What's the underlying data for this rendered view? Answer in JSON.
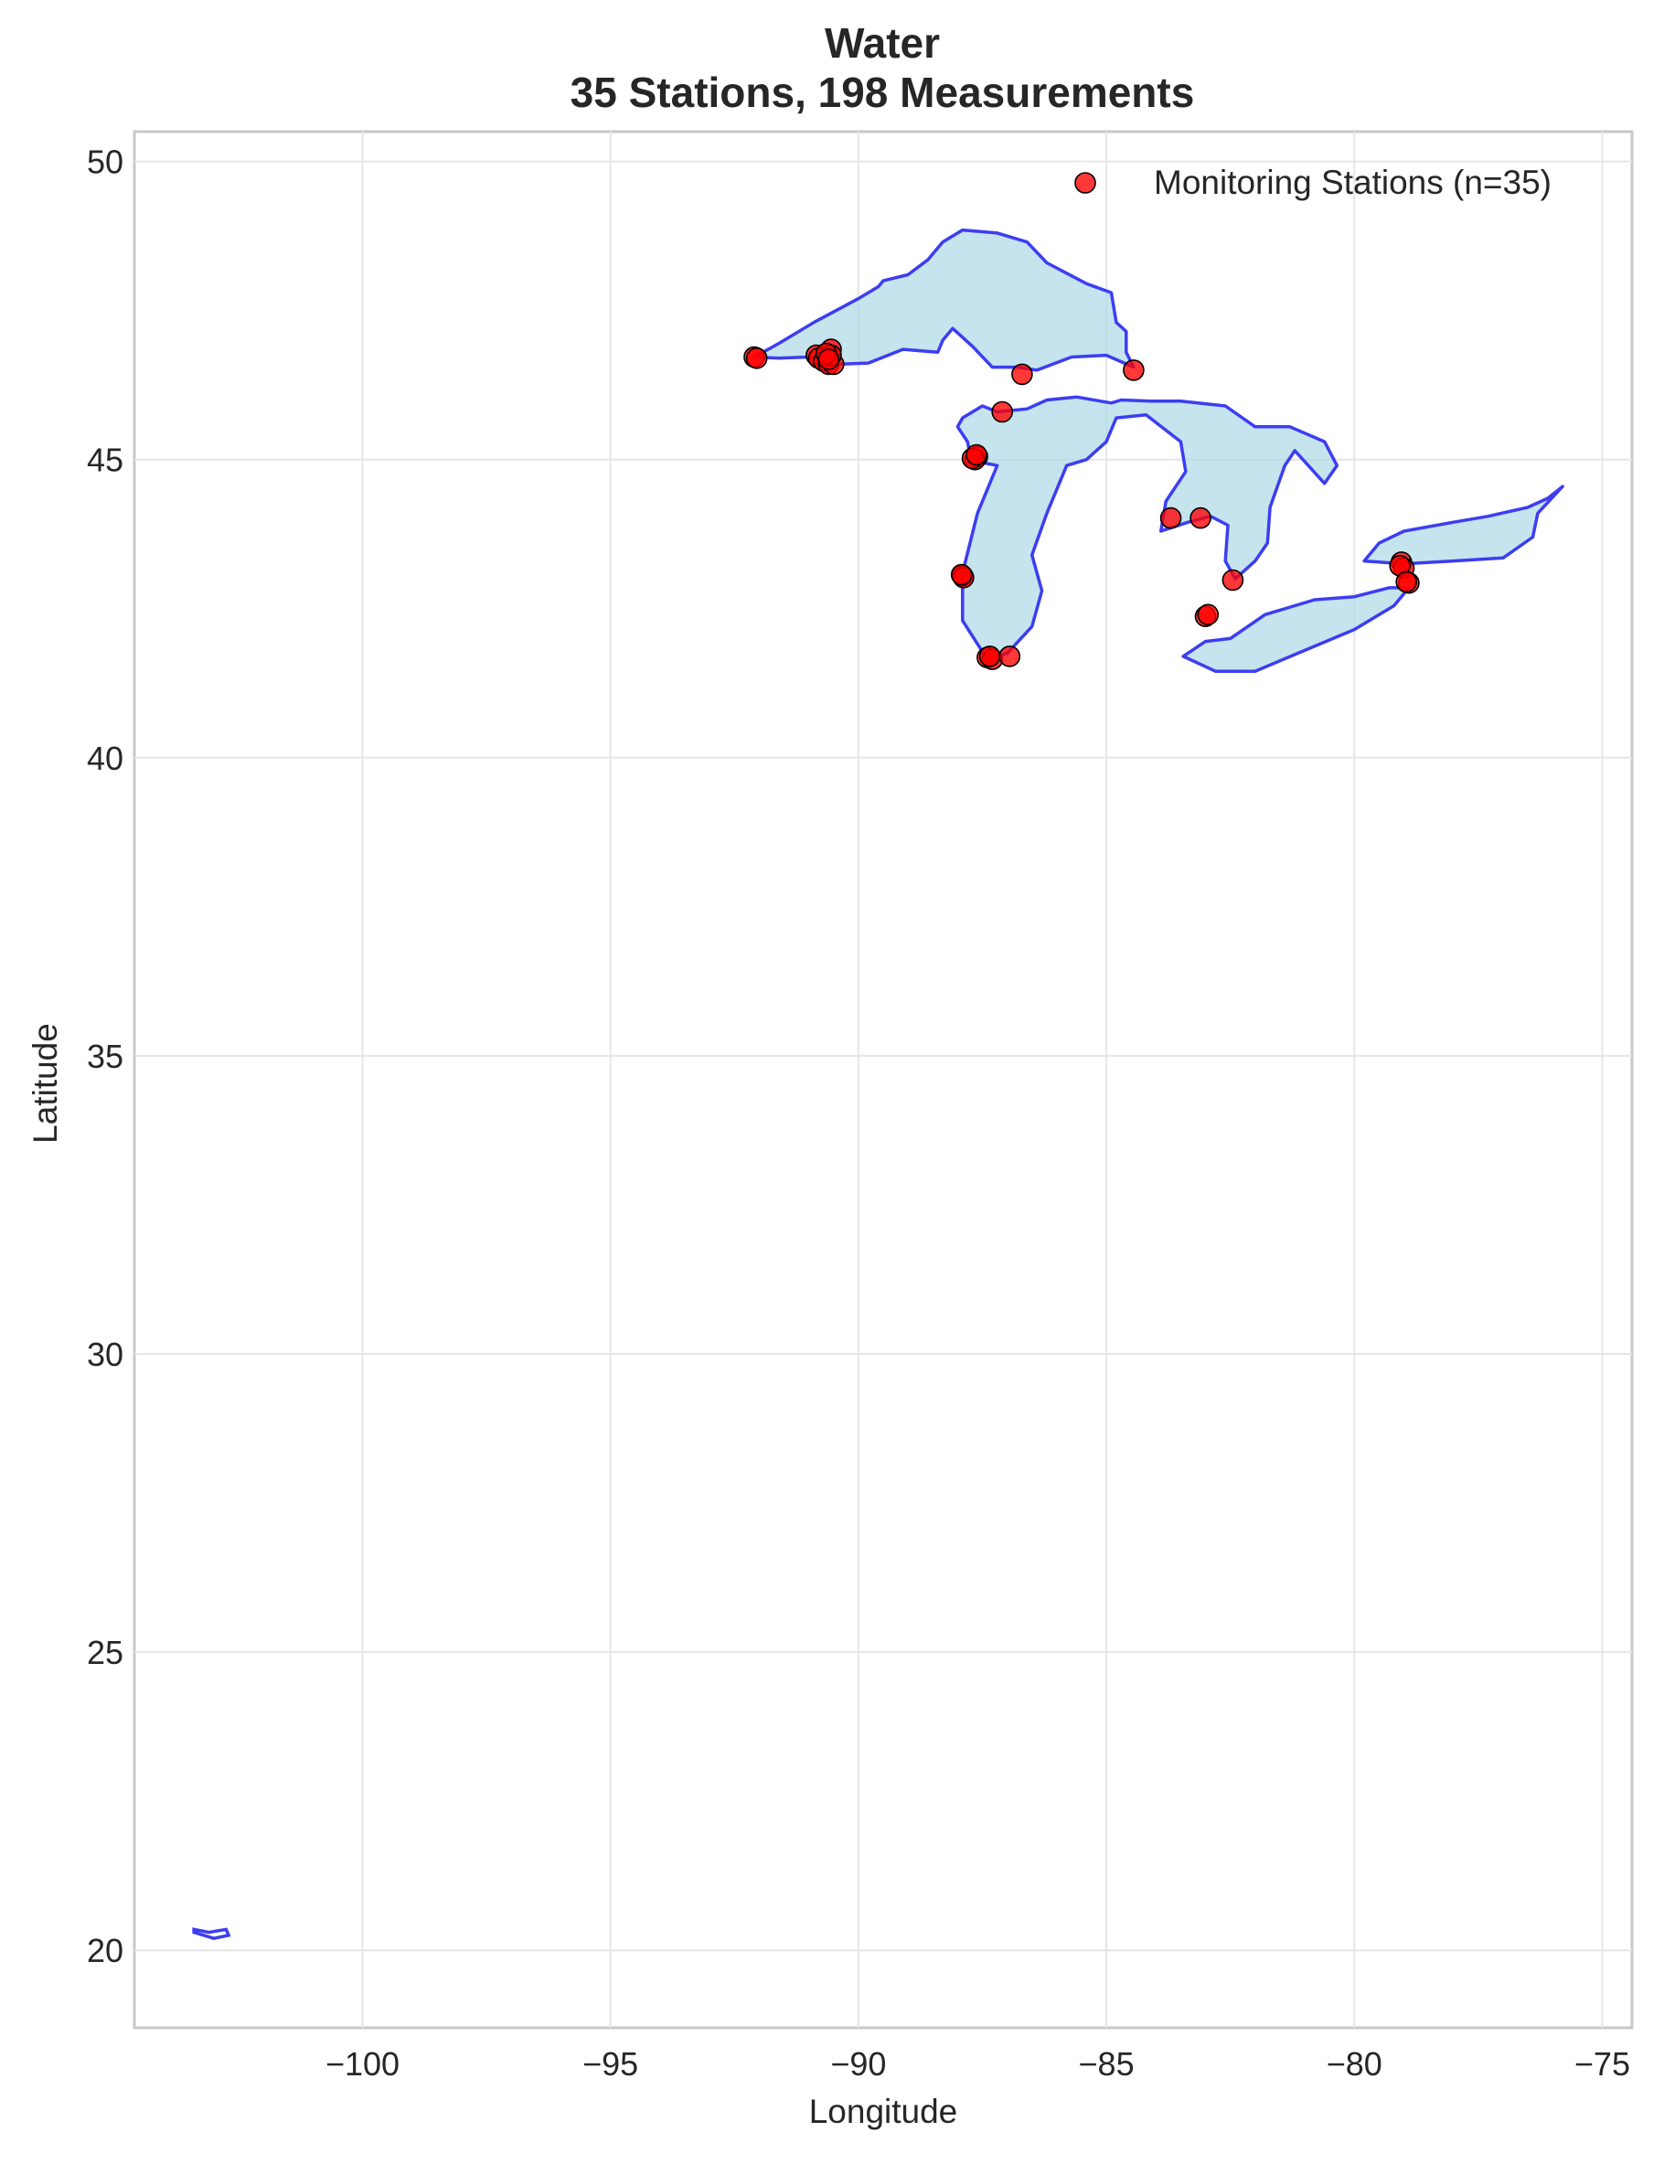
{
  "chart_data": {
    "type": "scatter",
    "title": "Water",
    "subtitle": "35 Stations, 198 Measurements",
    "xlabel": "Longitude",
    "ylabel": "Latitude",
    "xlim": [
      -104.6,
      -74.4
    ],
    "ylim": [
      18.7,
      50.5
    ],
    "xticks": [
      -100,
      -95,
      -90,
      -85,
      -80,
      -75
    ],
    "xtick_labels": [
      "−100",
      "−95",
      "−90",
      "−85",
      "−80",
      "−75"
    ],
    "yticks": [
      20,
      25,
      30,
      35,
      40,
      45,
      50
    ],
    "ytick_labels": [
      "20",
      "25",
      "30",
      "35",
      "40",
      "45",
      "50"
    ],
    "grid": true,
    "legend": {
      "position": "top-right",
      "entries": [
        "Monitoring Stations (n=35)"
      ]
    },
    "colors": {
      "station": "#ff0000",
      "lake_fill": "#add8e6",
      "lake_edge": "#3d3df2"
    },
    "series": [
      {
        "name": "Monitoring Stations (n=35)",
        "points": [
          {
            "x": -92.1,
            "y": 46.72
          },
          {
            "x": -92.05,
            "y": 46.7
          },
          {
            "x": -90.85,
            "y": 46.75
          },
          {
            "x": -90.8,
            "y": 46.7
          },
          {
            "x": -90.7,
            "y": 46.65
          },
          {
            "x": -90.6,
            "y": 46.6
          },
          {
            "x": -90.55,
            "y": 46.85
          },
          {
            "x": -90.5,
            "y": 46.6
          },
          {
            "x": -90.55,
            "y": 46.75
          },
          {
            "x": -90.65,
            "y": 46.78
          },
          {
            "x": -86.7,
            "y": 46.43
          },
          {
            "x": -84.45,
            "y": 46.5
          },
          {
            "x": -87.1,
            "y": 45.8
          },
          {
            "x": -87.6,
            "y": 45.05
          },
          {
            "x": -87.65,
            "y": 45.0
          },
          {
            "x": -87.7,
            "y": 45.02
          },
          {
            "x": -87.9,
            "y": 43.05
          },
          {
            "x": -87.88,
            "y": 43.02
          },
          {
            "x": -87.92,
            "y": 43.07
          },
          {
            "x": -87.4,
            "y": 41.68
          },
          {
            "x": -87.3,
            "y": 41.65
          },
          {
            "x": -87.35,
            "y": 41.7
          },
          {
            "x": -86.95,
            "y": 41.7
          },
          {
            "x": -83.7,
            "y": 44.02
          },
          {
            "x": -83.1,
            "y": 44.02
          },
          {
            "x": -82.45,
            "y": 42.98
          },
          {
            "x": -83.0,
            "y": 42.37
          },
          {
            "x": -82.95,
            "y": 42.4
          },
          {
            "x": -79.05,
            "y": 43.28
          },
          {
            "x": -79.0,
            "y": 43.18
          },
          {
            "x": -79.08,
            "y": 43.22
          },
          {
            "x": -78.9,
            "y": 42.93
          },
          {
            "x": -78.95,
            "y": 42.95
          },
          {
            "x": -90.6,
            "y": 46.68
          },
          {
            "x": -87.62,
            "y": 45.08
          }
        ]
      }
    ],
    "map_layer": {
      "description_kind": "lake outlines",
      "lakes": [
        {
          "name": "superior",
          "coords": [
            [
              -92.1,
              46.72
            ],
            [
              -91.6,
              46.95
            ],
            [
              -90.9,
              47.3
            ],
            [
              -90.0,
              47.7
            ],
            [
              -89.6,
              47.9
            ],
            [
              -89.5,
              48.0
            ],
            [
              -89.0,
              48.1
            ],
            [
              -88.6,
              48.35
            ],
            [
              -88.3,
              48.65
            ],
            [
              -87.9,
              48.85
            ],
            [
              -87.2,
              48.8
            ],
            [
              -86.6,
              48.65
            ],
            [
              -86.2,
              48.3
            ],
            [
              -85.4,
              47.95
            ],
            [
              -84.9,
              47.8
            ],
            [
              -84.8,
              47.3
            ],
            [
              -84.6,
              47.15
            ],
            [
              -84.6,
              46.8
            ],
            [
              -84.45,
              46.55
            ],
            [
              -85.0,
              46.75
            ],
            [
              -85.7,
              46.72
            ],
            [
              -86.4,
              46.5
            ],
            [
              -86.8,
              46.55
            ],
            [
              -87.3,
              46.55
            ],
            [
              -87.7,
              46.9
            ],
            [
              -88.1,
              47.2
            ],
            [
              -88.3,
              47.0
            ],
            [
              -88.4,
              46.8
            ],
            [
              -89.1,
              46.85
            ],
            [
              -89.8,
              46.62
            ],
            [
              -90.4,
              46.6
            ],
            [
              -91.0,
              46.72
            ],
            [
              -91.6,
              46.7
            ],
            [
              -92.1,
              46.72
            ]
          ]
        },
        {
          "name": "michigan-huron",
          "coords": [
            [
              -87.4,
              41.65
            ],
            [
              -87.9,
              42.3
            ],
            [
              -87.9,
              43.1
            ],
            [
              -87.6,
              44.1
            ],
            [
              -87.2,
              44.9
            ],
            [
              -87.5,
              44.95
            ],
            [
              -87.7,
              44.9
            ],
            [
              -87.8,
              45.3
            ],
            [
              -88.0,
              45.55
            ],
            [
              -87.9,
              45.7
            ],
            [
              -87.5,
              45.9
            ],
            [
              -87.2,
              45.8
            ],
            [
              -86.6,
              45.85
            ],
            [
              -86.2,
              46.0
            ],
            [
              -85.6,
              46.05
            ],
            [
              -84.9,
              45.95
            ],
            [
              -84.7,
              46.0
            ],
            [
              -84.1,
              45.98
            ],
            [
              -83.5,
              45.98
            ],
            [
              -82.6,
              45.9
            ],
            [
              -82.0,
              45.55
            ],
            [
              -81.3,
              45.55
            ],
            [
              -80.6,
              45.3
            ],
            [
              -80.35,
              44.9
            ],
            [
              -80.6,
              44.6
            ],
            [
              -81.2,
              45.15
            ],
            [
              -81.4,
              44.9
            ],
            [
              -81.7,
              44.2
            ],
            [
              -81.75,
              43.6
            ],
            [
              -82.0,
              43.3
            ],
            [
              -82.4,
              43.0
            ],
            [
              -82.6,
              43.3
            ],
            [
              -82.55,
              43.9
            ],
            [
              -82.9,
              44.05
            ],
            [
              -83.35,
              43.95
            ],
            [
              -83.9,
              43.8
            ],
            [
              -83.8,
              44.3
            ],
            [
              -83.4,
              44.8
            ],
            [
              -83.5,
              45.3
            ],
            [
              -84.2,
              45.75
            ],
            [
              -84.8,
              45.7
            ],
            [
              -85.0,
              45.3
            ],
            [
              -85.4,
              45.0
            ],
            [
              -85.8,
              44.9
            ],
            [
              -86.2,
              44.1
            ],
            [
              -86.5,
              43.4
            ],
            [
              -86.3,
              42.8
            ],
            [
              -86.5,
              42.2
            ],
            [
              -87.0,
              41.75
            ],
            [
              -87.4,
              41.65
            ]
          ]
        },
        {
          "name": "erie",
          "coords": [
            [
              -83.45,
              41.7
            ],
            [
              -82.8,
              41.45
            ],
            [
              -82.0,
              41.45
            ],
            [
              -81.0,
              41.8
            ],
            [
              -80.0,
              42.15
            ],
            [
              -79.2,
              42.55
            ],
            [
              -78.9,
              42.85
            ],
            [
              -79.3,
              42.85
            ],
            [
              -80.0,
              42.7
            ],
            [
              -80.8,
              42.65
            ],
            [
              -81.8,
              42.4
            ],
            [
              -82.5,
              42.0
            ],
            [
              -83.0,
              41.95
            ],
            [
              -83.45,
              41.7
            ]
          ]
        },
        {
          "name": "ontario",
          "coords": [
            [
              -79.8,
              43.3
            ],
            [
              -79.5,
              43.6
            ],
            [
              -79.0,
              43.8
            ],
            [
              -78.0,
              43.95
            ],
            [
              -77.3,
              44.05
            ],
            [
              -76.5,
              44.2
            ],
            [
              -76.1,
              44.35
            ],
            [
              -75.8,
              44.55
            ],
            [
              -76.3,
              44.1
            ],
            [
              -76.4,
              43.7
            ],
            [
              -77.0,
              43.35
            ],
            [
              -78.0,
              43.3
            ],
            [
              -79.0,
              43.25
            ],
            [
              -79.8,
              43.3
            ]
          ]
        }
      ],
      "islands": [
        {
          "name": "small-island",
          "coords": [
            [
              -103.4,
              20.35
            ],
            [
              -103.1,
              20.3
            ],
            [
              -102.75,
              20.35
            ],
            [
              -102.7,
              20.25
            ],
            [
              -103.0,
              20.2
            ],
            [
              -103.4,
              20.3
            ]
          ]
        }
      ]
    }
  }
}
